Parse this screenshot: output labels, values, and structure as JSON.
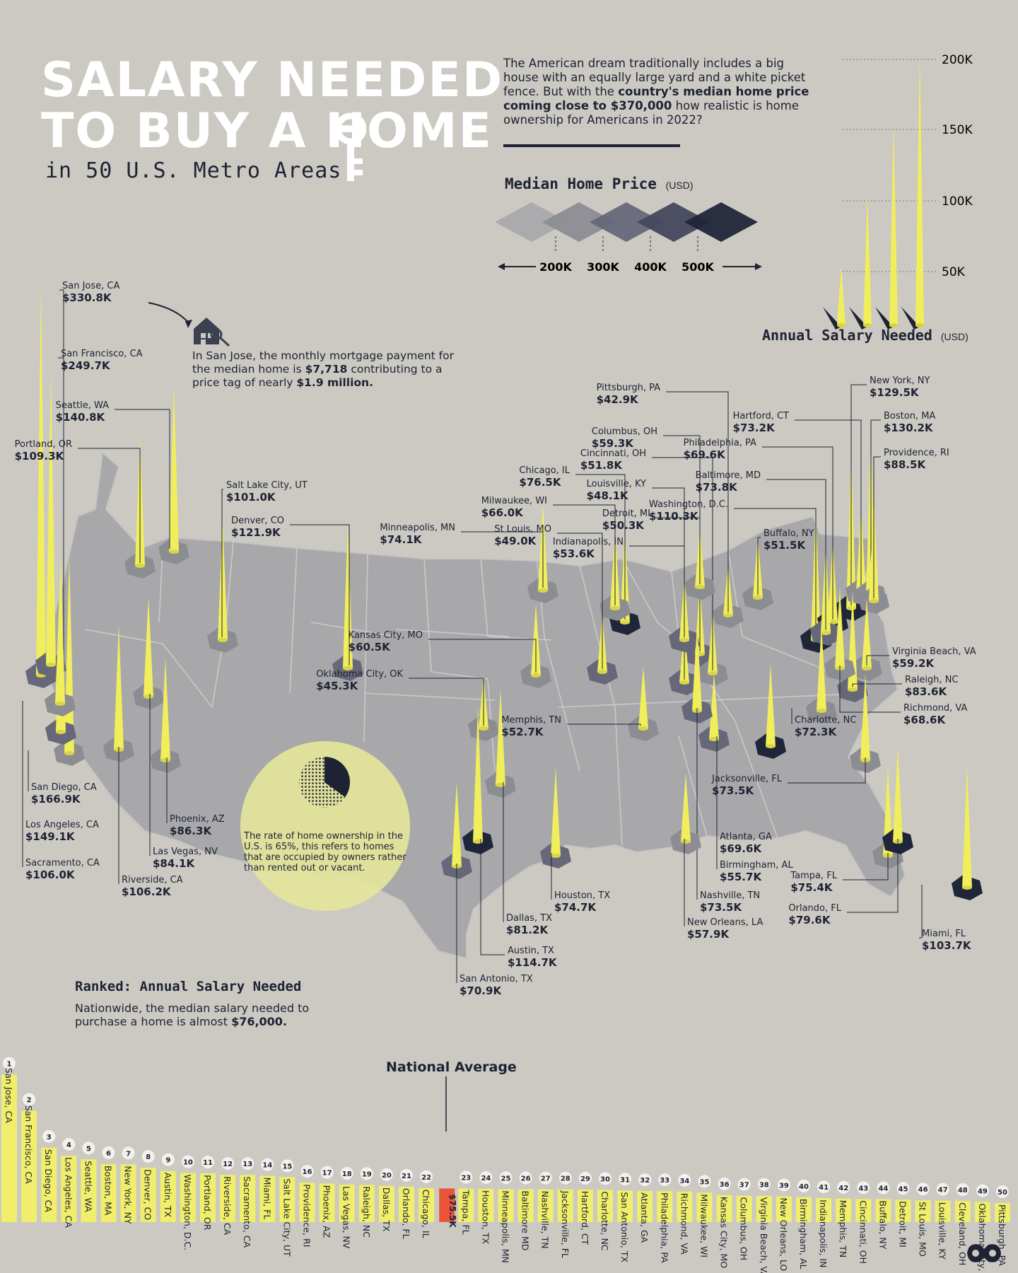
{
  "header": {
    "title_line1": "SALARY NEEDED",
    "title_line2": "TO BUY A HOME",
    "subtitle": "in 50 U.S. Metro Areas"
  },
  "intro": {
    "part1": "The American dream traditionally includes a big house with an equally large yard and a white picket fence. But with the ",
    "bold": "country's median home price coming close to $370,000",
    "part2": " how realistic is home ownership for Americans in 2022?"
  },
  "legend": {
    "title": "Median Home Price",
    "unit": "(USD)",
    "labels": [
      "200K",
      "300K",
      "400K",
      "500K"
    ],
    "colors": [
      "#a9a9ab",
      "#8c8d93",
      "#66687a",
      "#44485e",
      "#20263a"
    ]
  },
  "salary_scale": {
    "title": "Annual Salary Needed",
    "unit": "(USD)",
    "ticks": [
      "200K",
      "150K",
      "100K",
      "50K"
    ],
    "values": [
      50,
      100,
      150,
      200
    ]
  },
  "callout": {
    "text_a": "In San Jose, the monthly mortgage payment for the median home is ",
    "bold_a": "$7,718",
    "text_b": " contributing to a price tag of nearly ",
    "bold_b": "$1.9 million."
  },
  "bubble": {
    "text": "The rate of home ownership in the U.S. is 65%, this refers to homes that are occupied by owners rather than rented out or vacant."
  },
  "ranked": {
    "title": "Ranked: Annual Salary Needed",
    "desc_a": "Nationwide, the median salary needed to purchase a home is almost ",
    "desc_bold": "$76,000.",
    "national_title": "National Average",
    "national_value": "$75.5K"
  },
  "colors": {
    "background": "#cbc9c2",
    "spike": "#f1ee5c",
    "bar": "#f0ee6a",
    "national": "#e9543a",
    "dark": "#1e2233"
  },
  "chart_data": {
    "type": "bar",
    "title": "Ranked: Annual Salary Needed",
    "unit": "USD thousands",
    "national_average": 75.5,
    "categories": [
      "San Jose, CA",
      "San Francisco, CA",
      "San Diego, CA",
      "Los Angeles, CA",
      "Seattle, WA",
      "Boston, MA",
      "New York, NY",
      "Denver, CO",
      "Austin, TX",
      "Washington, D.C.",
      "Portland, OR",
      "Riverside, CA",
      "Sacramento, CA",
      "Miami, FL",
      "Salt Lake City, UT",
      "Providence, RI",
      "Phoenix, AZ",
      "Las Vegas, NV",
      "Raleigh, NC",
      "Dallas, TX",
      "Orlando, FL",
      "Chicago, IL",
      "Tampa, FL",
      "Houston, TX",
      "Minneapolis, MN",
      "Baltimore MD",
      "Nashville, TN",
      "Jacksonville, FL",
      "Hartford, CT",
      "Charlotte, NC",
      "San Antonio, TX",
      "Atlanta, GA",
      "Philadelphia, PA",
      "Richmond, VA",
      "Milwaukee, WI",
      "Kansas City, MO",
      "Columbus, OH",
      "Virginia Beach, VA",
      "New Orleans, LO",
      "Birmingham, AL",
      "Indianapolis, IN",
      "Memphis, TN",
      "Cincinnati, OH",
      "Buffalo, NY",
      "Detroit, MI",
      "St Louis, MO",
      "Louisville, KY",
      "Cleveland, OH",
      "Oklahoma City, OK",
      "Pittsburgh, PA"
    ],
    "values": [
      330.8,
      249.7,
      166.9,
      149.1,
      140.8,
      130.2,
      129.5,
      121.9,
      114.7,
      110.3,
      109.3,
      106.2,
      106.0,
      103.7,
      101.0,
      88.5,
      86.3,
      84.1,
      83.6,
      81.2,
      79.6,
      76.5,
      75.4,
      74.7,
      74.1,
      73.8,
      73.5,
      73.5,
      73.2,
      72.3,
      70.9,
      69.6,
      69.6,
      68.6,
      66.0,
      60.5,
      59.3,
      59.2,
      57.9,
      55.7,
      53.6,
      52.7,
      51.8,
      51.5,
      50.3,
      49.0,
      48.1,
      47.5,
      45.3,
      42.9
    ]
  },
  "map": {
    "cities": [
      {
        "name": "San Jose, CA",
        "value": "$330.8K"
      },
      {
        "name": "San Francisco, CA",
        "value": "$249.7K"
      },
      {
        "name": "Seattle, WA",
        "value": "$140.8K"
      },
      {
        "name": "Portland, OR",
        "value": "$109.3K"
      },
      {
        "name": "Salt Lake City, UT",
        "value": "$101.0K"
      },
      {
        "name": "Denver, CO",
        "value": "$121.9K"
      },
      {
        "name": "San Diego, CA",
        "value": "$166.9K"
      },
      {
        "name": "Los Angeles, CA",
        "value": "$149.1K"
      },
      {
        "name": "Sacramento, CA",
        "value": "$106.0K"
      },
      {
        "name": "Riverside, CA",
        "value": "$106.2K"
      },
      {
        "name": "Las Vegas, NV",
        "value": "$84.1K"
      },
      {
        "name": "Phoenix, AZ",
        "value": "$86.3K"
      },
      {
        "name": "Minneapolis, MN",
        "value": "$74.1K"
      },
      {
        "name": "Kansas City, MO",
        "value": "$60.5K"
      },
      {
        "name": "Oklahoma City, OK",
        "value": "$45.3K"
      },
      {
        "name": "Chicago, IL",
        "value": "$76.5K"
      },
      {
        "name": "Milwaukee, WI",
        "value": "$66.0K"
      },
      {
        "name": "St Louis, MO",
        "value": "$49.0K"
      },
      {
        "name": "Pittsburgh, PA",
        "value": "$42.9K"
      },
      {
        "name": "Columbus, OH",
        "value": "$59.3K"
      },
      {
        "name": "Cincinnati, OH",
        "value": "$51.8K"
      },
      {
        "name": "Louisville, KY",
        "value": "$48.1K"
      },
      {
        "name": "Detroit, MI",
        "value": "$50.3K"
      },
      {
        "name": "Indianapolis, IN",
        "value": "$53.6K"
      },
      {
        "name": "Washington, D.C.",
        "value": "$110.3K"
      },
      {
        "name": "Buffalo, NY",
        "value": "$51.5K"
      },
      {
        "name": "New York, NY",
        "value": "$129.5K"
      },
      {
        "name": "Hartford, CT",
        "value": "$73.2K"
      },
      {
        "name": "Boston, MA",
        "value": "$130.2K"
      },
      {
        "name": "Philadelphia, PA",
        "value": "$69.6K"
      },
      {
        "name": "Providence, RI",
        "value": "$88.5K"
      },
      {
        "name": "Baltimore, MD",
        "value": "$73.8K"
      },
      {
        "name": "Virginia Beach, VA",
        "value": "$59.2K"
      },
      {
        "name": "Raleigh, NC",
        "value": "$83.6K"
      },
      {
        "name": "Richmond, VA",
        "value": "$68.6K"
      },
      {
        "name": "Charlotte, NC",
        "value": "$72.3K"
      },
      {
        "name": "Memphis, TN",
        "value": "$52.7K"
      },
      {
        "name": "Jacksonville, FL",
        "value": "$73.5K"
      },
      {
        "name": "Atlanta, GA",
        "value": "$69.6K"
      },
      {
        "name": "Birmingham, AL",
        "value": "$55.7K"
      },
      {
        "name": "Nashville, TN",
        "value": "$73.5K"
      },
      {
        "name": "New Orleans, LA",
        "value": "$57.9K"
      },
      {
        "name": "Houston, TX",
        "value": "$74.7K"
      },
      {
        "name": "Dallas, TX",
        "value": "$81.2K"
      },
      {
        "name": "Austin, TX",
        "value": "$114.7K"
      },
      {
        "name": "San Antonio, TX",
        "value": "$70.9K"
      },
      {
        "name": "Tampa, FL",
        "value": "$75.4K"
      },
      {
        "name": "Orlando, FL",
        "value": "$79.6K"
      },
      {
        "name": "Miami, FL",
        "value": "$103.7K"
      }
    ]
  }
}
